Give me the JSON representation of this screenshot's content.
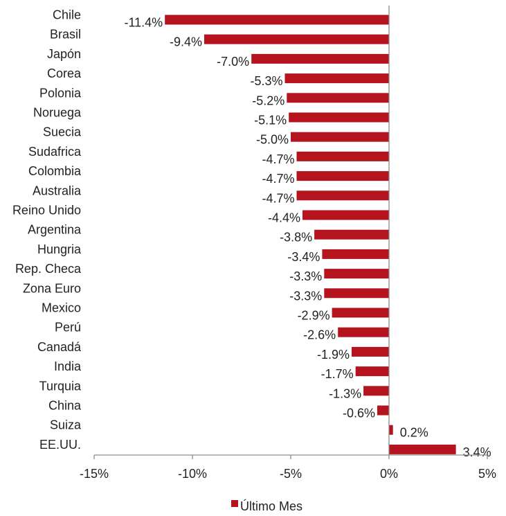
{
  "chart_data": {
    "type": "bar",
    "orientation": "horizontal",
    "categories": [
      "Chile",
      "Brasil",
      "Japón",
      "Corea",
      "Polonia",
      "Noruega",
      "Suecia",
      "Sudafrica",
      "Colombia",
      "Australia",
      "Reino Unido",
      "Argentina",
      "Hungria",
      "Rep. Checa",
      "Zona Euro",
      "Mexico",
      "Perú",
      "Canadá",
      "India",
      "Turquia",
      "China",
      "Suiza",
      "EE.UU."
    ],
    "series": [
      {
        "name": "Último Mes",
        "values": [
          -11.4,
          -9.4,
          -7.0,
          -5.3,
          -5.2,
          -5.1,
          -5.0,
          -4.7,
          -4.7,
          -4.7,
          -4.4,
          -3.8,
          -3.4,
          -3.3,
          -3.3,
          -2.9,
          -2.6,
          -1.9,
          -1.7,
          -1.3,
          -0.6,
          0.2,
          3.4
        ],
        "labels": [
          "-11.4%",
          "-9.4%",
          "-7.0%",
          "-5.3%",
          "-5.2%",
          "-5.1%",
          "-5.0%",
          "-4.7%",
          "-4.7%",
          "-4.7%",
          "-4.4%",
          "-3.8%",
          "-3.4%",
          "-3.3%",
          "-3.3%",
          "-2.9%",
          "-2.6%",
          "-1.9%",
          "-1.7%",
          "-1.3%",
          "-0.6%",
          "0.2%",
          "3.4%"
        ]
      }
    ],
    "xlim": [
      -15,
      5
    ],
    "xticks": [
      -15,
      -10,
      -5,
      0,
      5
    ],
    "xtick_labels": [
      "-15%",
      "-10%",
      "-5%",
      "0%",
      "5%"
    ],
    "title": "",
    "xlabel": "",
    "ylabel": "",
    "grid": false,
    "legend_position": "bottom",
    "bar_color": "#b5141e"
  }
}
